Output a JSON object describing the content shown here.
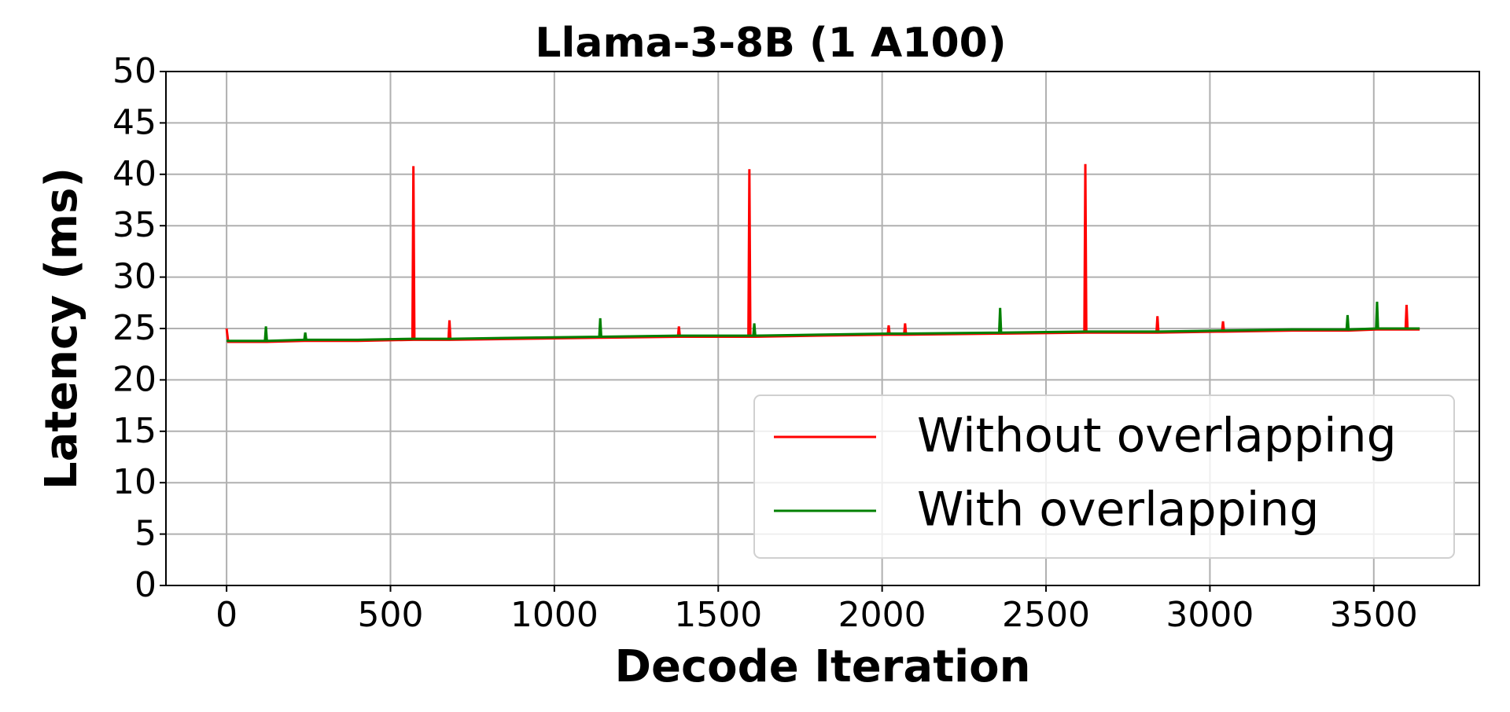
{
  "chart_data": {
    "type": "line",
    "title": "Llama-3-8B (1 A100)",
    "x_label": "Decode Iteration",
    "y_label": "Latency (ms)",
    "x": [
      0,
      5,
      117,
      120,
      123,
      237,
      240,
      243,
      400,
      567,
      570,
      573,
      677,
      680,
      683,
      900,
      1137,
      1140,
      1143,
      1377,
      1380,
      1383,
      1592,
      1595,
      1598,
      1607,
      1610,
      1613,
      1800,
      2017,
      2020,
      2023,
      2067,
      2070,
      2073,
      2357,
      2360,
      2363,
      2617,
      2620,
      2623,
      2837,
      2840,
      2843,
      3037,
      3040,
      3043,
      3250,
      3417,
      3420,
      3423,
      3507,
      3510,
      3513,
      3597,
      3600,
      3603,
      3640
    ],
    "series": [
      {
        "name": "Without overlapping",
        "color": "#ff0000",
        "values": [
          25.0,
          23.7,
          23.7,
          23.7,
          23.7,
          23.8,
          23.8,
          23.8,
          23.8,
          23.9,
          40.8,
          23.9,
          23.9,
          25.8,
          23.9,
          24.0,
          24.1,
          24.1,
          24.1,
          24.2,
          25.2,
          24.2,
          24.2,
          40.5,
          24.2,
          24.2,
          24.2,
          24.2,
          24.3,
          24.4,
          25.3,
          24.4,
          24.4,
          25.5,
          24.4,
          24.5,
          24.5,
          24.5,
          24.6,
          41.0,
          24.6,
          24.6,
          26.2,
          24.6,
          24.7,
          25.7,
          24.7,
          24.8,
          24.8,
          24.8,
          24.8,
          24.9,
          24.9,
          24.9,
          24.9,
          27.3,
          24.9,
          24.9
        ]
      },
      {
        "name": "With overlapping",
        "color": "#008000",
        "values": [
          23.8,
          23.8,
          23.8,
          25.2,
          23.8,
          23.9,
          24.6,
          23.9,
          23.9,
          24.0,
          24.0,
          24.0,
          24.0,
          24.0,
          24.0,
          24.1,
          24.2,
          26.0,
          24.2,
          24.3,
          24.3,
          24.3,
          24.3,
          24.3,
          24.3,
          24.3,
          25.5,
          24.3,
          24.4,
          24.5,
          24.5,
          24.5,
          24.5,
          24.5,
          24.5,
          24.6,
          27.0,
          24.6,
          24.7,
          24.7,
          24.7,
          24.7,
          24.7,
          24.7,
          24.8,
          24.8,
          24.8,
          24.9,
          24.9,
          26.3,
          24.9,
          25.0,
          27.6,
          25.0,
          25.0,
          25.0,
          25.0,
          25.0
        ]
      }
    ],
    "xlim": [
      -185,
      3822
    ],
    "ylim": [
      0,
      50
    ],
    "xticks": [
      0,
      500,
      1000,
      1500,
      2000,
      2500,
      3000,
      3500
    ],
    "yticks": [
      0,
      5,
      10,
      15,
      20,
      25,
      30,
      35,
      40,
      45,
      50
    ],
    "grid": true,
    "legend": "lower right"
  }
}
